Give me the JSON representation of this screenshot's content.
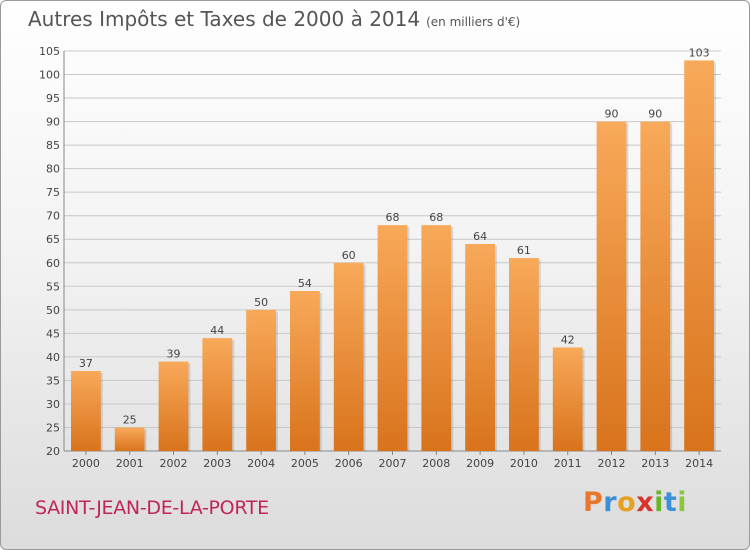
{
  "title": "Autres Impôts et Taxes de 2000 à 2014",
  "subtitle": "(en milliers d'€)",
  "commune": "SAINT-JEAN-DE-LA-PORTE",
  "logo": {
    "letters": [
      "P",
      "r",
      "o",
      "x",
      "i",
      "t",
      "i"
    ],
    "colors": [
      "#e8762b",
      "#3a8fd6",
      "#e8a020",
      "#d8342a",
      "#6ab42a",
      "#3a8fd6",
      "#8cc63f"
    ]
  },
  "colors": {
    "bar_top": "#f8a95a",
    "bar_bottom": "#d9731c",
    "grid": "#c8c8c8",
    "text": "#444444"
  },
  "chart_data": {
    "type": "bar",
    "categories": [
      "2000",
      "2001",
      "2002",
      "2003",
      "2004",
      "2005",
      "2006",
      "2007",
      "2008",
      "2009",
      "2010",
      "2011",
      "2012",
      "2013",
      "2014"
    ],
    "values": [
      37,
      25,
      39,
      44,
      50,
      54,
      60,
      68,
      68,
      64,
      61,
      42,
      90,
      90,
      103
    ],
    "ylim": [
      20,
      105
    ],
    "yticks": [
      20,
      25,
      30,
      35,
      40,
      45,
      50,
      55,
      60,
      65,
      70,
      75,
      80,
      85,
      90,
      95,
      100,
      105
    ],
    "grid": true,
    "legend": "none"
  }
}
